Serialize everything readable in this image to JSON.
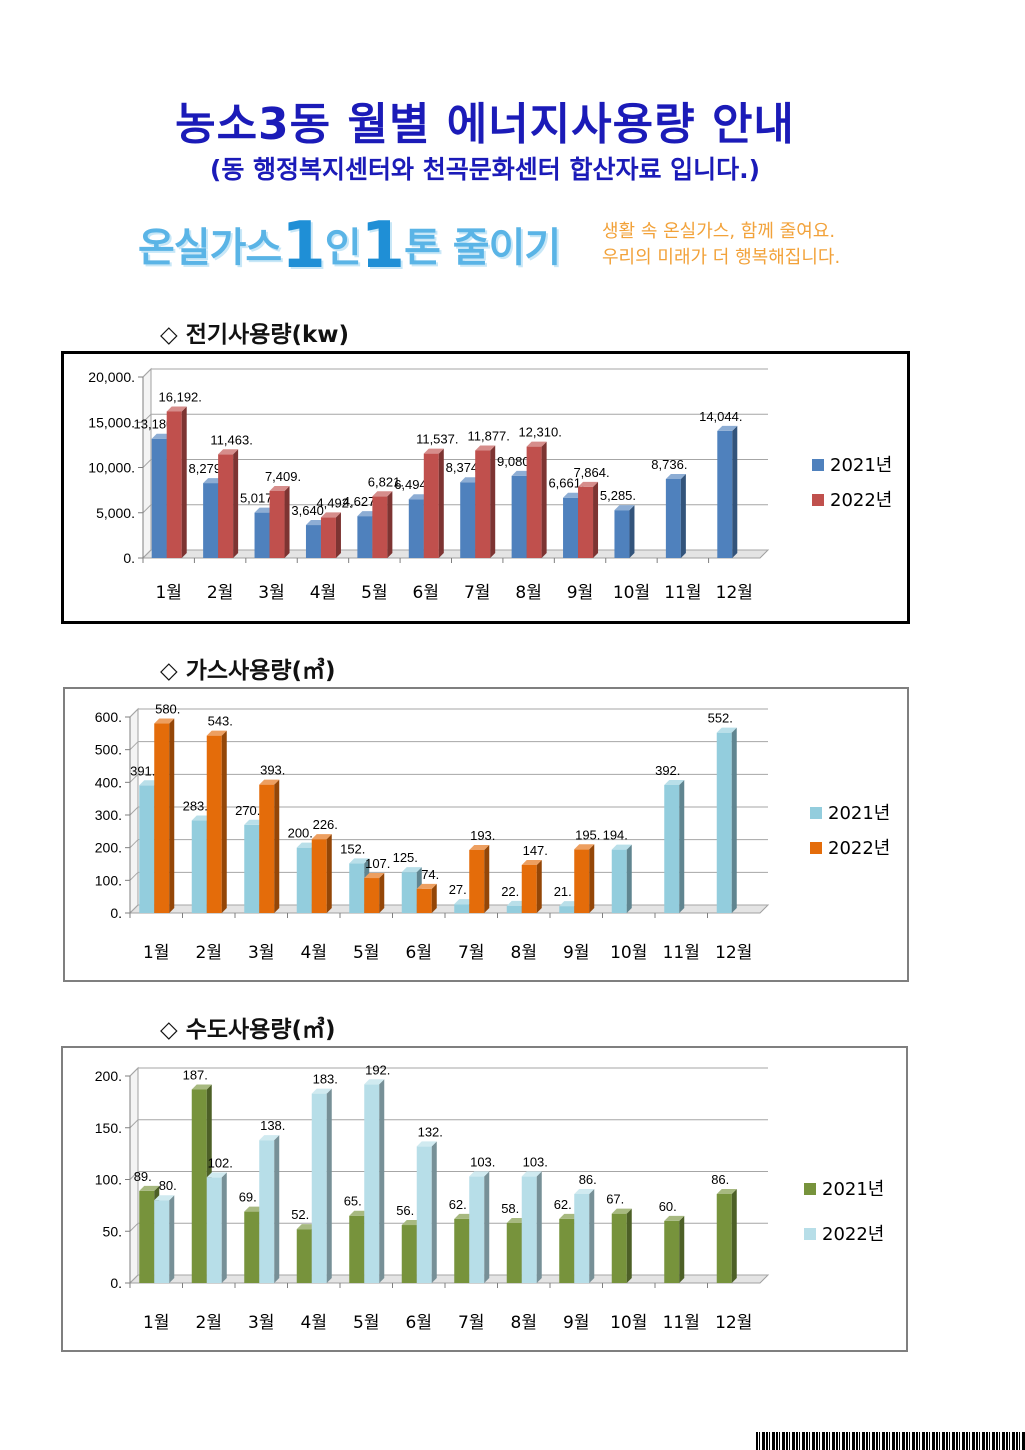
{
  "header": {
    "title": "농소3동 월별 에너지사용량 안내",
    "subtitle": "(동 행정복지센터와 천곡문화센터 합산자료 입니다.)"
  },
  "banner": {
    "logo_pre": "온실가스",
    "logo_one_a": "1",
    "logo_mid": "인",
    "logo_one_b": "1",
    "logo_post": "톤 줄이기",
    "slogan_line1": "생활 속 온실가스, 함께 줄여요.",
    "slogan_line2": "우리의 미래가 더 행복해집니다."
  },
  "sections": {
    "electricity_title": "◇ 전기사용량(kw)",
    "gas_title": "◇ 가스사용량(㎥)",
    "water_title": "◇ 수도사용량(㎥)"
  },
  "colors": {
    "elec_2021": "#4f81bd",
    "elec_2022": "#c0504d",
    "gas_2021": "#93cddd",
    "gas_2022": "#e46c0a",
    "water_2021": "#77933c",
    "water_2022": "#b7dee8"
  },
  "chart_data": [
    {
      "id": "electricity",
      "type": "bar",
      "categories": [
        "1월",
        "2월",
        "3월",
        "4월",
        "5월",
        "6월",
        "7월",
        "8월",
        "9월",
        "10월",
        "11월",
        "12월"
      ],
      "ylim": [
        0,
        20000
      ],
      "yticks": [
        "0.",
        "5,000.",
        "10,000.",
        "15,000.",
        "20,000."
      ],
      "legend_position": "right",
      "grid": true,
      "series": [
        {
          "name": "2021년",
          "color": "#4f81bd",
          "values": [
            13180,
            8279,
            5017,
            3640,
            4627,
            6494,
            8374,
            9080,
            6661,
            5285,
            8736,
            14044
          ],
          "labels": [
            "13,180.",
            "8,279.",
            "5,017.",
            "3,640.",
            "4,627.",
            "6,494.",
            "8,374.",
            "9,080.",
            "6,661.",
            "5,285.",
            "8,736.",
            "14,044."
          ]
        },
        {
          "name": "2022년",
          "color": "#c0504d",
          "values": [
            16192,
            11463,
            7409,
            4492,
            6821,
            11537,
            11877,
            12310,
            7864,
            null,
            null,
            null
          ],
          "labels": [
            "16,192.",
            "11,463.",
            "7,409.",
            "4,492.",
            "6,821.",
            "11,537.",
            "11,877.",
            "12,310.",
            "7,864.",
            "",
            "",
            ""
          ]
        }
      ]
    },
    {
      "id": "gas",
      "type": "bar",
      "categories": [
        "1월",
        "2월",
        "3월",
        "4월",
        "5월",
        "6월",
        "7월",
        "8월",
        "9월",
        "10월",
        "11월",
        "12월"
      ],
      "ylim": [
        0,
        600
      ],
      "yticks": [
        "0.",
        "100.",
        "200.",
        "300.",
        "400.",
        "500.",
        "600."
      ],
      "legend_position": "right",
      "grid": true,
      "series": [
        {
          "name": "2021년",
          "color": "#93cddd",
          "values": [
            391,
            283,
            270,
            200,
            152,
            125,
            27,
            22,
            21,
            194,
            392,
            552
          ],
          "labels": [
            "391.",
            "283.",
            "270.",
            "200.",
            "152.",
            "125.",
            "27.",
            "22.",
            "21.",
            "194.",
            "392.",
            "552."
          ]
        },
        {
          "name": "2022년",
          "color": "#e46c0a",
          "values": [
            580,
            543,
            393,
            226,
            107,
            74,
            193,
            147,
            195,
            null,
            null,
            null
          ],
          "labels": [
            "580.",
            "543.",
            "393.",
            "226.",
            "107.",
            "74.",
            "193.",
            "147.",
            "195.",
            "",
            "",
            ""
          ]
        }
      ]
    },
    {
      "id": "water",
      "type": "bar",
      "categories": [
        "1월",
        "2월",
        "3월",
        "4월",
        "5월",
        "6월",
        "7월",
        "8월",
        "9월",
        "10월",
        "11월",
        "12월"
      ],
      "ylim": [
        0,
        200
      ],
      "yticks": [
        "0.",
        "50.",
        "100.",
        "150.",
        "200."
      ],
      "legend_position": "right",
      "grid": true,
      "series": [
        {
          "name": "2021년",
          "color": "#77933c",
          "values": [
            89,
            187,
            69,
            52,
            65,
            56,
            62,
            58,
            62,
            67,
            60,
            86
          ],
          "labels": [
            "89.",
            "187.",
            "69.",
            "52.",
            "65.",
            "56.",
            "62.",
            "58.",
            "62.",
            "67.",
            "60.",
            "86."
          ]
        },
        {
          "name": "2022년",
          "color": "#b7dee8",
          "values": [
            80,
            102,
            138,
            183,
            192,
            132,
            103,
            103,
            86,
            null,
            null,
            null
          ],
          "labels": [
            "80.",
            "102.",
            "138.",
            "183.",
            "192.",
            "132.",
            "103.",
            "103.",
            "86.",
            "",
            "",
            ""
          ]
        }
      ]
    }
  ]
}
